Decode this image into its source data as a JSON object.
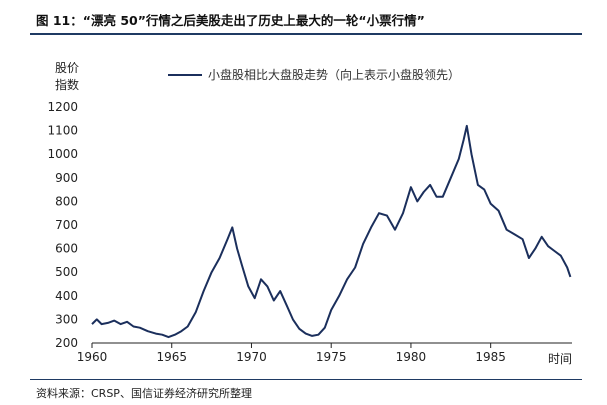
{
  "figure": {
    "title": "图 11：“漂亮 50”行情之后美股走出了历史上最大的一轮“小票行情”",
    "source": "资料来源：CRSP、国信证券经济研究所整理"
  },
  "chart_data": {
    "type": "line",
    "ylabel_line1": "股价",
    "ylabel_line2": "指数",
    "xunit": "时间",
    "xlim": [
      1960,
      1990.1
    ],
    "ylim": [
      200,
      1200
    ],
    "yticks": [
      "200",
      "300",
      "400",
      "500",
      "600",
      "700",
      "800",
      "900",
      "1000",
      "1100",
      "1200"
    ],
    "xticks": [
      "1960",
      "1965",
      "1970",
      "1975",
      "1980",
      "1985"
    ],
    "legend_position": "top",
    "colors": {
      "series": "#1b2f5c",
      "axis": "#222222"
    },
    "series": [
      {
        "name": "小盘股相比大盘股走势（向上表示小盘股领先）",
        "x": [
          1960.0,
          1960.3,
          1960.6,
          1961.0,
          1961.4,
          1961.8,
          1962.2,
          1962.6,
          1963.0,
          1963.5,
          1964.0,
          1964.4,
          1964.8,
          1965.2,
          1965.6,
          1966.0,
          1966.5,
          1967.0,
          1967.5,
          1968.0,
          1968.5,
          1968.8,
          1969.1,
          1969.4,
          1969.8,
          1970.2,
          1970.6,
          1971.0,
          1971.4,
          1971.8,
          1972.2,
          1972.6,
          1973.0,
          1973.4,
          1973.8,
          1974.2,
          1974.6,
          1975.0,
          1975.5,
          1976.0,
          1976.5,
          1977.0,
          1977.5,
          1978.0,
          1978.5,
          1979.0,
          1979.5,
          1980.0,
          1980.4,
          1980.8,
          1981.2,
          1981.6,
          1982.0,
          1982.5,
          1983.0,
          1983.3,
          1983.5,
          1983.8,
          1984.2,
          1984.6,
          1985.0,
          1985.5,
          1986.0,
          1986.5,
          1987.0,
          1987.4,
          1987.8,
          1988.2,
          1988.6,
          1989.0,
          1989.4,
          1989.8,
          1990.0
        ],
        "y": [
          280,
          300,
          280,
          285,
          295,
          280,
          290,
          270,
          265,
          250,
          240,
          235,
          225,
          235,
          250,
          270,
          330,
          420,
          500,
          560,
          640,
          690,
          600,
          530,
          440,
          390,
          470,
          440,
          380,
          420,
          360,
          300,
          260,
          240,
          230,
          235,
          265,
          340,
          400,
          470,
          520,
          620,
          690,
          750,
          740,
          680,
          750,
          860,
          800,
          840,
          870,
          820,
          820,
          900,
          980,
          1060,
          1120,
          1000,
          870,
          850,
          790,
          760,
          680,
          660,
          640,
          560,
          600,
          650,
          610,
          590,
          570,
          520,
          480
        ]
      }
    ]
  }
}
